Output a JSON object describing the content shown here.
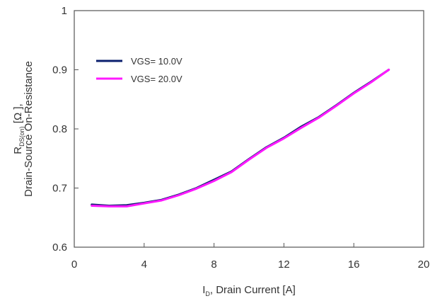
{
  "chart_data": {
    "type": "line",
    "xlabel_main": "I",
    "xlabel_sub": "D",
    "xlabel_rest": ", Drain Current [A]",
    "ylabel_line1_main": "R",
    "ylabel_line1_sub": "DS(on)",
    "ylabel_line1_rest": " [Ω ],",
    "ylabel_line2": "Drain-Source On-Resistance",
    "xlim": [
      0,
      20
    ],
    "ylim": [
      0.6,
      1.0
    ],
    "xticks": [
      0,
      4,
      8,
      12,
      16,
      20
    ],
    "xtick_labels": [
      "0",
      "4",
      "8",
      "12",
      "16",
      "20"
    ],
    "yticks": [
      0.6,
      0.7,
      0.8,
      0.9,
      1.0
    ],
    "ytick_labels": [
      "0.6",
      "0.7",
      "0.8",
      "0.9",
      "1"
    ],
    "legend_position": "top-left",
    "series": [
      {
        "name": "VGS= 10.0V",
        "color": "#0b1f6e",
        "x": [
          1,
          2,
          3,
          4,
          5,
          6,
          7,
          8,
          9,
          10,
          11,
          12,
          13,
          14,
          15,
          16,
          17,
          18
        ],
        "y": [
          0.672,
          0.67,
          0.671,
          0.675,
          0.68,
          0.689,
          0.7,
          0.714,
          0.728,
          0.749,
          0.769,
          0.785,
          0.804,
          0.82,
          0.84,
          0.861,
          0.88,
          0.9
        ]
      },
      {
        "name": "VGS= 20.0V",
        "color": "#ff1aff",
        "x": [
          1,
          2,
          3,
          4,
          5,
          6,
          7,
          8,
          9,
          10,
          11,
          12,
          13,
          14,
          15,
          16,
          17,
          18
        ],
        "y": [
          0.67,
          0.669,
          0.669,
          0.674,
          0.679,
          0.688,
          0.699,
          0.712,
          0.727,
          0.748,
          0.768,
          0.784,
          0.802,
          0.819,
          0.839,
          0.86,
          0.879,
          0.9
        ]
      }
    ]
  }
}
